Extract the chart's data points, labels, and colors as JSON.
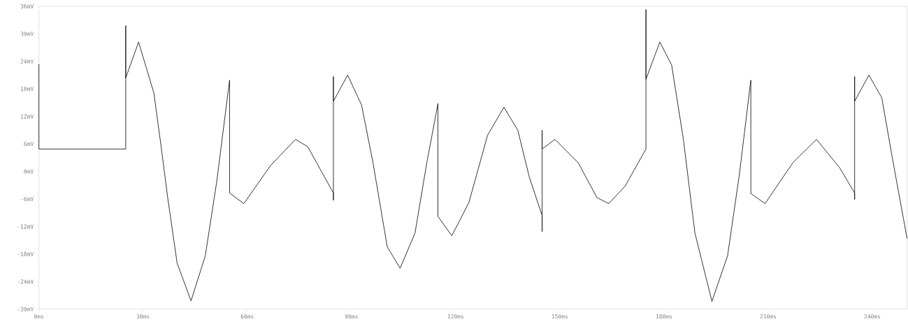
{
  "chart_data": {
    "type": "line",
    "x": [
      0,
      0,
      0,
      25.0,
      25.0,
      25.0,
      28.7,
      33.1,
      35.1,
      37.1,
      39.8,
      43.8,
      47.9,
      51.2,
      54.9,
      54.9,
      59.0,
      66.7,
      73.9,
      77.4,
      84.8,
      84.8,
      84.8,
      84.8,
      88.9,
      92.9,
      96.2,
      100.3,
      104.0,
      108.3,
      111.7,
      114.9,
      114.9,
      118.9,
      123.8,
      129.2,
      133.9,
      137.9,
      141.2,
      144.9,
      144.9,
      144.9,
      144.9,
      148.6,
      155.3,
      160.7,
      164.1,
      168.8,
      174.8,
      174.8,
      174.8,
      178.8,
      182.2,
      185.6,
      188.9,
      193.8,
      198.3,
      201.7,
      205.0,
      205.0,
      209.1,
      217.1,
      223.9,
      230.6,
      234.9,
      234.9,
      234.9,
      234.9,
      239.0,
      242.7,
      246.0,
      250
    ],
    "series": [
      {
        "color": "#000000",
        "values": [
          23.4,
          4.9,
          4.9,
          4.9,
          31.8,
          20.4,
          28.2,
          17.1,
          5.9,
          -5.8,
          -20.0,
          -28.2,
          -18.4,
          -2.2,
          19.9,
          -4.7,
          -7.0,
          1.3,
          7.0,
          5.4,
          -4.7,
          -6.3,
          20.7,
          15.3,
          21.0,
          14.5,
          1.9,
          -16.4,
          -21.1,
          -13.4,
          1.9,
          14.8,
          -9.8,
          -14.0,
          -6.8,
          7.9,
          14.0,
          9.0,
          -1.2,
          -9.6,
          -13.1,
          9.0,
          4.9,
          7.0,
          1.9,
          -5.7,
          -7.0,
          -3.2,
          4.9,
          35.3,
          20.1,
          28.2,
          23.2,
          6.9,
          -13.4,
          -28.3,
          -18.4,
          -0.7,
          19.9,
          -4.8,
          -7.0,
          1.9,
          7.0,
          0.8,
          -4.7,
          -6.1,
          20.7,
          15.3,
          21.0,
          16.1,
          1.9,
          -14.6
        ]
      }
    ],
    "xlim": [
      0,
      250
    ],
    "ylim": [
      -30,
      36
    ],
    "xticks": [
      {
        "value": 0,
        "label": "0ms"
      },
      {
        "value": 30,
        "label": "30ms"
      },
      {
        "value": 60,
        "label": "60ms"
      },
      {
        "value": 90,
        "label": "90ms"
      },
      {
        "value": 120,
        "label": "120ms"
      },
      {
        "value": 150,
        "label": "150ms"
      },
      {
        "value": 180,
        "label": "180ms"
      },
      {
        "value": 210,
        "label": "210ms"
      },
      {
        "value": 240,
        "label": "240ms"
      }
    ],
    "yticks": [
      {
        "value": -30,
        "label": "-30mV"
      },
      {
        "value": -24,
        "label": "-24mV"
      },
      {
        "value": -18,
        "label": "-18mV"
      },
      {
        "value": -12,
        "label": "-12mV"
      },
      {
        "value": -6,
        "label": "-6mV"
      },
      {
        "value": 0,
        "label": "0mV"
      },
      {
        "value": 6,
        "label": "6mV"
      },
      {
        "value": 12,
        "label": "12mV"
      },
      {
        "value": 18,
        "label": "18mV"
      },
      {
        "value": 24,
        "label": "24mV"
      },
      {
        "value": 30,
        "label": "30mV"
      },
      {
        "value": 36,
        "label": "36mV"
      }
    ],
    "grid": false,
    "marker": "none",
    "line_style": "solid"
  }
}
